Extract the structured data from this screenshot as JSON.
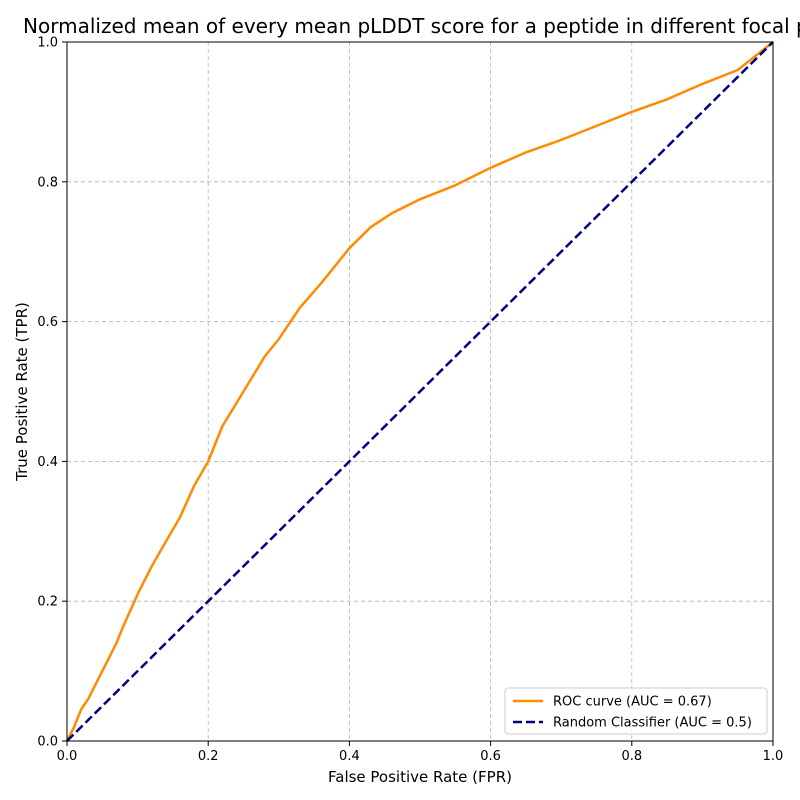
{
  "chart_data": {
    "type": "line",
    "title": "Normalized mean of every mean pLDDT score for a peptide in different focal pr",
    "xlabel": "False Positive Rate (FPR)",
    "ylabel": "True Positive Rate (TPR)",
    "xlim": [
      0.0,
      1.0
    ],
    "ylim": [
      0.0,
      1.0
    ],
    "x_ticks": [
      "0.0",
      "0.2",
      "0.4",
      "0.6",
      "0.8",
      "1.0"
    ],
    "y_ticks": [
      "0.0",
      "0.2",
      "0.4",
      "0.6",
      "0.8",
      "1.0"
    ],
    "grid": true,
    "legend_position": "lower-right",
    "series": [
      {
        "name": "ROC curve (AUC = 0.67)",
        "color": "#ff8c00",
        "style": "solid",
        "x": [
          0.0,
          0.01,
          0.02,
          0.03,
          0.04,
          0.05,
          0.06,
          0.07,
          0.08,
          0.1,
          0.12,
          0.14,
          0.16,
          0.18,
          0.2,
          0.22,
          0.25,
          0.28,
          0.3,
          0.33,
          0.36,
          0.4,
          0.43,
          0.46,
          0.5,
          0.55,
          0.6,
          0.65,
          0.7,
          0.75,
          0.8,
          0.85,
          0.9,
          0.95,
          1.0
        ],
        "y": [
          0.0,
          0.02,
          0.045,
          0.06,
          0.08,
          0.1,
          0.12,
          0.14,
          0.165,
          0.21,
          0.25,
          0.285,
          0.32,
          0.365,
          0.4,
          0.45,
          0.5,
          0.55,
          0.575,
          0.62,
          0.655,
          0.705,
          0.735,
          0.755,
          0.775,
          0.795,
          0.82,
          0.842,
          0.86,
          0.88,
          0.9,
          0.918,
          0.94,
          0.96,
          1.0
        ]
      },
      {
        "name": "Random Classifier (AUC = 0.5)",
        "color": "#000080",
        "style": "dashed",
        "x": [
          0.0,
          1.0
        ],
        "y": [
          0.0,
          1.0
        ]
      }
    ]
  }
}
